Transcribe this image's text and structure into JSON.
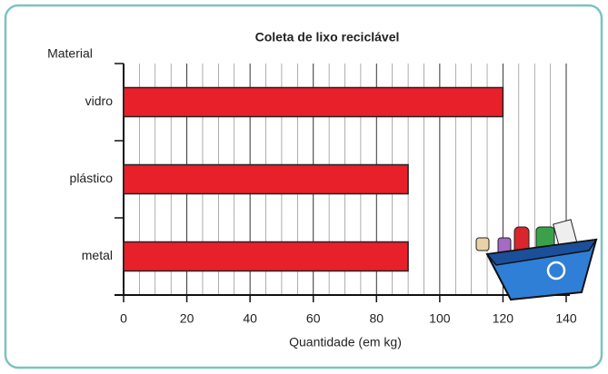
{
  "chart_data": {
    "type": "bar",
    "orientation": "horizontal",
    "title": "Coleta de lixo reciclável",
    "y_label": "Material",
    "x_label": "Quantidade (em kg)",
    "categories": [
      "vidro",
      "plástico",
      "metal"
    ],
    "values": [
      120,
      90,
      90
    ],
    "color": "#e8202a",
    "xlim": [
      0,
      140
    ],
    "xticks": [
      0,
      20,
      40,
      60,
      80,
      100,
      120,
      140
    ],
    "grid": true
  }
}
